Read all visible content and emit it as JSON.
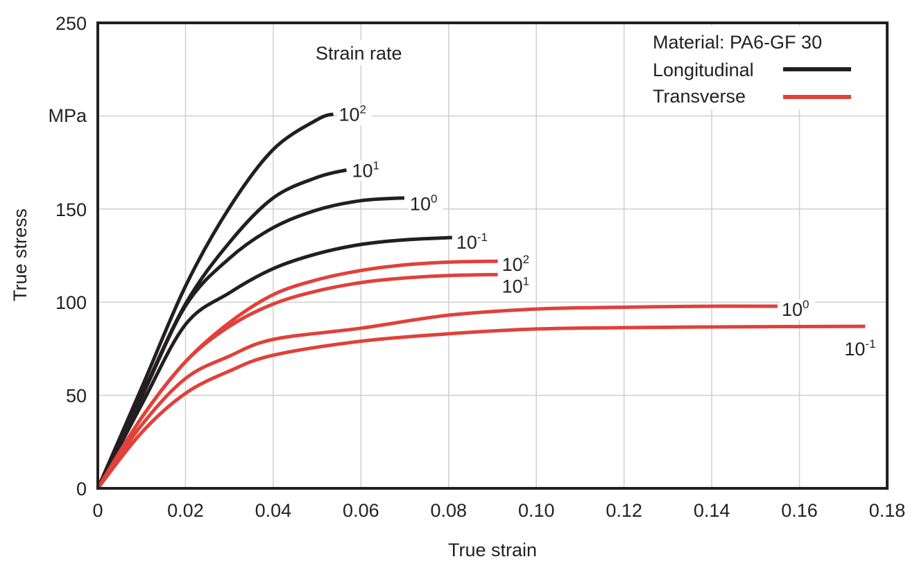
{
  "chart_data": {
    "type": "line",
    "title": "",
    "xlabel": "True strain",
    "ylabel": "True stress",
    "yunit": "MPa",
    "xlim": [
      0,
      0.18
    ],
    "ylim": [
      0,
      250
    ],
    "xticks": [
      "0",
      "0.02",
      "0.04",
      "0.06",
      "0.08",
      "0.10",
      "0.12",
      "0.14",
      "0.16",
      "0.18"
    ],
    "xtick_values": [
      0,
      0.02,
      0.04,
      0.06,
      0.08,
      0.1,
      0.12,
      0.14,
      0.16,
      0.18
    ],
    "yticks": [
      "0",
      "50",
      "100",
      "150",
      "250"
    ],
    "ytick_values": [
      0,
      50,
      100,
      150,
      250
    ],
    "grid": true,
    "annotation": "Strain rate",
    "legend": {
      "placement": "top-right",
      "title": "Material: PA6-GF 30",
      "entries": [
        {
          "label": "Longitudinal",
          "color": "#231f20"
        },
        {
          "label": "Transverse",
          "color": "#e0413a"
        }
      ]
    },
    "series": [
      {
        "name": "Longitudinal 10^2",
        "group": "Longitudinal",
        "color": "#231f20",
        "label_base": "10",
        "label_exp": "2",
        "x": [
          0,
          0.01,
          0.02,
          0.03,
          0.04,
          0.05,
          0.0537
        ],
        "y": [
          0,
          54,
          108.6,
          150.7,
          182,
          198,
          201
        ]
      },
      {
        "name": "Longitudinal 10^1",
        "group": "Longitudinal",
        "color": "#231f20",
        "label_base": "10",
        "label_exp": "1",
        "x": [
          0,
          0.01,
          0.02,
          0.03,
          0.04,
          0.05,
          0.0567
        ],
        "y": [
          0,
          50,
          99,
          132,
          156,
          167,
          171
        ]
      },
      {
        "name": "Longitudinal 10^0",
        "group": "Longitudinal",
        "color": "#231f20",
        "label_base": "10",
        "label_exp": "0",
        "x": [
          0,
          0.01,
          0.02,
          0.03,
          0.04,
          0.05,
          0.06,
          0.0699
        ],
        "y": [
          0,
          49,
          98,
          123.5,
          140,
          149.5,
          154.5,
          156
        ]
      },
      {
        "name": "Longitudinal 10^-1",
        "group": "Longitudinal",
        "color": "#231f20",
        "label_base": "10",
        "label_exp": "-1",
        "x": [
          0,
          0.01,
          0.02,
          0.03,
          0.04,
          0.05,
          0.06,
          0.07,
          0.0808
        ],
        "y": [
          0,
          45,
          88,
          105,
          118,
          126,
          131,
          133.5,
          134.7
        ]
      },
      {
        "name": "Transverse 10^2",
        "group": "Transverse",
        "color": "#e0413a",
        "label_base": "10",
        "label_exp": "2",
        "x": [
          0,
          0.01,
          0.02,
          0.03,
          0.04,
          0.05,
          0.06,
          0.07,
          0.08,
          0.0912
        ],
        "y": [
          0,
          38,
          68,
          89,
          104,
          112,
          117,
          120,
          121.5,
          122
        ]
      },
      {
        "name": "Transverse 10^1",
        "group": "Transverse",
        "color": "#e0413a",
        "label_base": "10",
        "label_exp": "1",
        "x": [
          0,
          0.01,
          0.02,
          0.03,
          0.04,
          0.05,
          0.06,
          0.07,
          0.08,
          0.0912
        ],
        "y": [
          0,
          38,
          68,
          87,
          99,
          106,
          110.5,
          113,
          114.3,
          114.8
        ]
      },
      {
        "name": "Transverse 10^0",
        "group": "Transverse",
        "color": "#e0413a",
        "label_base": "10",
        "label_exp": "0",
        "x": [
          0,
          0.01,
          0.02,
          0.03,
          0.04,
          0.06,
          0.08,
          0.1,
          0.12,
          0.14,
          0.155
        ],
        "y": [
          0,
          34,
          59,
          71,
          80,
          86,
          93,
          96.3,
          97.3,
          97.8,
          97.8
        ]
      },
      {
        "name": "Transverse 10^-1",
        "group": "Transverse",
        "color": "#e0413a",
        "label_base": "10",
        "label_exp": "-1",
        "x": [
          0,
          0.01,
          0.02,
          0.03,
          0.04,
          0.06,
          0.08,
          0.1,
          0.12,
          0.14,
          0.175
        ],
        "y": [
          0,
          30,
          51,
          63,
          71.5,
          79,
          83,
          85.6,
          86.3,
          86.7,
          87
        ]
      }
    ]
  }
}
